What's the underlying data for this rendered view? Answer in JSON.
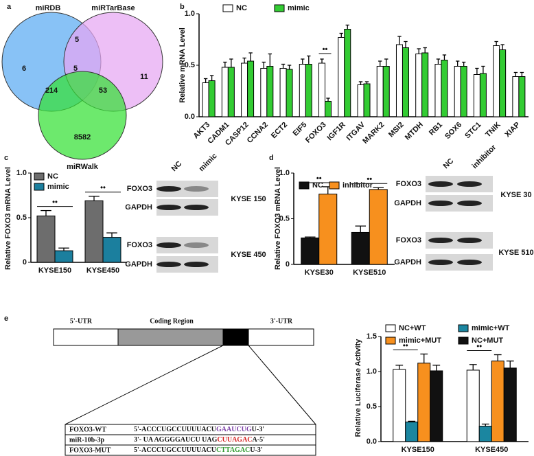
{
  "chart_data": [
    {
      "type": "venn",
      "panel": "a",
      "sets": [
        {
          "name": "miRDB",
          "color": "#5aaaf2"
        },
        {
          "name": "miRTarBase",
          "color": "#e6a6f2"
        },
        {
          "name": "miRWalk",
          "color": "#35e035"
        }
      ],
      "regions": [
        6,
        5,
        11,
        5,
        214,
        53,
        8582
      ]
    },
    {
      "type": "bar",
      "panel": "b",
      "ylabel": "Relative mRNA Level",
      "categories": [
        "AKT3",
        "CADM1",
        "CASP12",
        "CCNA2",
        "ECT2",
        "EIF5",
        "FOXO3",
        "IGF1R",
        "ITGAV",
        "MARK2",
        "MSI2",
        "MTDH",
        "RB1",
        "SOX6",
        "STC1",
        "TNIK",
        "XIAP"
      ],
      "series": [
        {
          "name": "NC",
          "color": "#ffffff",
          "values": [
            0.33,
            0.48,
            0.52,
            0.47,
            0.47,
            0.51,
            0.52,
            0.77,
            0.31,
            0.49,
            0.7,
            0.61,
            0.51,
            0.49,
            0.41,
            0.69,
            0.39
          ],
          "errors": [
            0.04,
            0.05,
            0.05,
            0.06,
            0.04,
            0.05,
            0.04,
            0.04,
            0.03,
            0.05,
            0.08,
            0.05,
            0.05,
            0.05,
            0.06,
            0.04,
            0.04
          ]
        },
        {
          "name": "mimic",
          "color": "#33cc33",
          "values": [
            0.35,
            0.48,
            0.54,
            0.49,
            0.46,
            0.51,
            0.15,
            0.85,
            0.32,
            0.49,
            0.67,
            0.62,
            0.55,
            0.49,
            0.42,
            0.65,
            0.39
          ],
          "errors": [
            0.05,
            0.08,
            0.08,
            0.12,
            0.04,
            0.08,
            0.03,
            0.04,
            0.02,
            0.07,
            0.06,
            0.05,
            0.05,
            0.04,
            0.07,
            0.05,
            0.04
          ]
        }
      ],
      "significance": [
        null,
        null,
        null,
        null,
        null,
        null,
        "••",
        null,
        null,
        null,
        null,
        null,
        null,
        null,
        null,
        null,
        null
      ],
      "ylim": [
        0,
        1
      ],
      "yticks": [
        {
          "value": 0,
          "label": "0.0"
        },
        0.5,
        {
          "value": 1,
          "label": "1.0"
        }
      ]
    },
    {
      "type": "bar",
      "panel": "c",
      "ylabel": "Relative FOXO3 mRNA Level",
      "categories": [
        "KYSE150",
        "KYSE450"
      ],
      "series": [
        {
          "name": "NC",
          "color": "#6d6d6d",
          "values": [
            0.52,
            0.69
          ],
          "errors": [
            0.06,
            0.05
          ]
        },
        {
          "name": "mimic",
          "color": "#1b7f9e",
          "values": [
            0.13,
            0.28
          ],
          "errors": [
            0.03,
            0.05
          ]
        }
      ],
      "significance": [
        "••",
        "••"
      ],
      "ylim": [
        0,
        1
      ],
      "yticks": [
        0,
        0.5,
        {
          "value": 1,
          "label": "1.0"
        }
      ]
    },
    {
      "type": "bar",
      "panel": "d",
      "ylabel": "Relative FOXO3 mRNA Level",
      "categories": [
        "KYSE30",
        "KYSE510"
      ],
      "series": [
        {
          "name": "NC",
          "color": "#111111",
          "values": [
            0.29,
            0.35
          ],
          "errors": [
            0.01,
            0.07
          ]
        },
        {
          "name": "inhibitor",
          "color": "#f7901e",
          "values": [
            0.77,
            0.82
          ],
          "errors": [
            0.08,
            0.02
          ]
        }
      ],
      "significance": [
        "••",
        "••"
      ],
      "ylim": [
        0,
        1
      ],
      "yticks": [
        0,
        0.5,
        {
          "value": 1,
          "label": "1.0"
        }
      ]
    },
    {
      "type": "bar",
      "panel": "e",
      "ylabel": "Relative Luciferase Activity",
      "categories": [
        "KYSE150",
        "KYSE450"
      ],
      "series": [
        {
          "name": "NC+WT",
          "color": "#ffffff",
          "values": [
            1.03,
            1.02
          ],
          "errors": [
            0.06,
            0.08
          ]
        },
        {
          "name": "mimic+WT",
          "color": "#1b86a0",
          "values": [
            0.28,
            0.22
          ],
          "errors": [
            0.01,
            0.03
          ]
        },
        {
          "name": "mimic+MUT",
          "color": "#f7901e",
          "values": [
            1.12,
            1.15
          ],
          "errors": [
            0.13,
            0.09
          ]
        },
        {
          "name": "NC+MUT",
          "color": "#111111",
          "values": [
            1.01,
            1.05
          ],
          "errors": [
            0.08,
            0.1
          ]
        }
      ],
      "significance": [
        "••",
        "••"
      ],
      "ylim": [
        0,
        1.5
      ],
      "yticks": [
        {
          "value": 0,
          "label": "0.0"
        },
        0.5,
        {
          "value": 1,
          "label": "1.0"
        },
        1.5
      ]
    }
  ],
  "blots": [
    {
      "lanes": [
        "NC",
        "mimic"
      ],
      "groups": [
        {
          "cell_line": "KYSE 150",
          "rows": [
            "FOXO3",
            "GAPDH"
          ]
        },
        {
          "cell_line": "KYSE 450",
          "rows": [
            "FOXO3",
            "GAPDH"
          ]
        }
      ]
    },
    {
      "lanes": [
        "NC",
        "inhibitor"
      ],
      "groups": [
        {
          "cell_line": "KYSE 30",
          "rows": [
            "FOXO3",
            "GAPDH"
          ]
        },
        {
          "cell_line": "KYSE 510",
          "rows": [
            "FOXO3",
            "GAPDH"
          ]
        }
      ]
    }
  ],
  "construct": {
    "regions": [
      "5'-UTR",
      "Coding Region",
      "3'-UTR"
    ],
    "sequences": [
      {
        "name": "FOXO3-WT",
        "parts": [
          "5'-ACCCUGCCUUUUACU",
          "GAAUCUG",
          "U-3'"
        ],
        "highlight": "#7b3fa6"
      },
      {
        "name": "miR-10b-3p",
        "parts": [
          "3'- UA AGGGGAUCU UAG",
          "CUUAGAC",
          "A-5'"
        ],
        "highlight": "#d42020"
      },
      {
        "name": "FOXO3-MUT",
        "parts": [
          "5'-ACCCUGCCUUUUACU",
          "CTTAGAC",
          "U-3'"
        ],
        "highlight": "#2e9a2e"
      }
    ]
  }
}
